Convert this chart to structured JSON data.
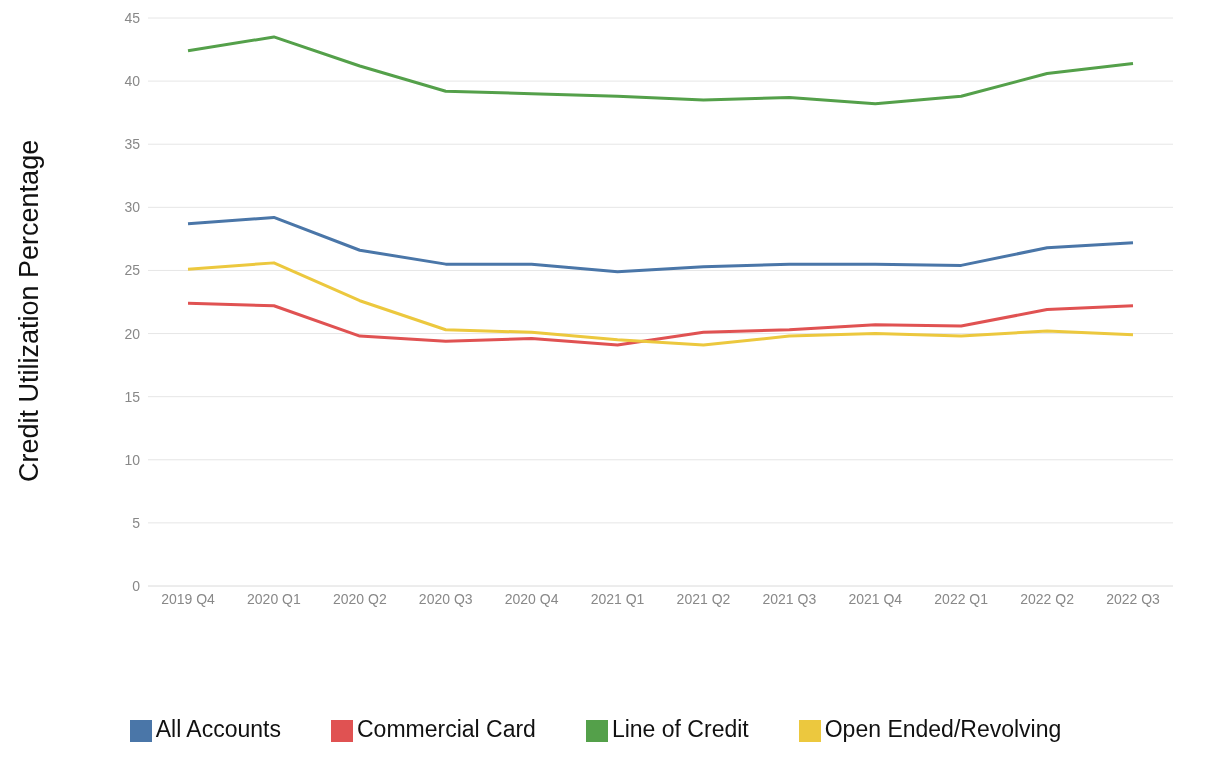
{
  "chart_data": {
    "type": "line",
    "ylabel": "Credit Utilization Percentage",
    "categories": [
      "2019 Q4",
      "2020 Q1",
      "2020 Q2",
      "2020 Q3",
      "2020 Q4",
      "2021 Q1",
      "2021 Q2",
      "2021 Q3",
      "2021 Q4",
      "2022 Q1",
      "2022 Q2",
      "2022 Q3"
    ],
    "series": [
      {
        "name": "All Accounts",
        "color": "#4a76a8",
        "values": [
          28.7,
          29.2,
          26.6,
          25.5,
          25.5,
          24.9,
          25.3,
          25.5,
          25.5,
          25.4,
          26.8,
          27.2
        ]
      },
      {
        "name": "Commercial Card",
        "color": "#e05252",
        "values": [
          22.4,
          22.2,
          19.8,
          19.4,
          19.6,
          19.1,
          20.1,
          20.3,
          20.7,
          20.6,
          21.9,
          22.2
        ]
      },
      {
        "name": "Line of Credit",
        "color": "#54a04a",
        "values": [
          42.4,
          43.5,
          41.2,
          39.2,
          39.0,
          38.8,
          38.5,
          38.7,
          38.2,
          38.8,
          40.6,
          41.4
        ]
      },
      {
        "name": "Open Ended/Revolving",
        "color": "#ecc83e",
        "values": [
          25.1,
          25.6,
          22.6,
          20.3,
          20.1,
          19.5,
          19.1,
          19.8,
          20.0,
          19.8,
          20.2,
          19.9
        ]
      }
    ],
    "ylim": [
      0,
      45
    ],
    "yticks": [
      0,
      5,
      10,
      15,
      20,
      25,
      30,
      35,
      40,
      45
    ],
    "grid": "y",
    "legend": "bottom",
    "marker": "none",
    "line_style": "solid"
  }
}
